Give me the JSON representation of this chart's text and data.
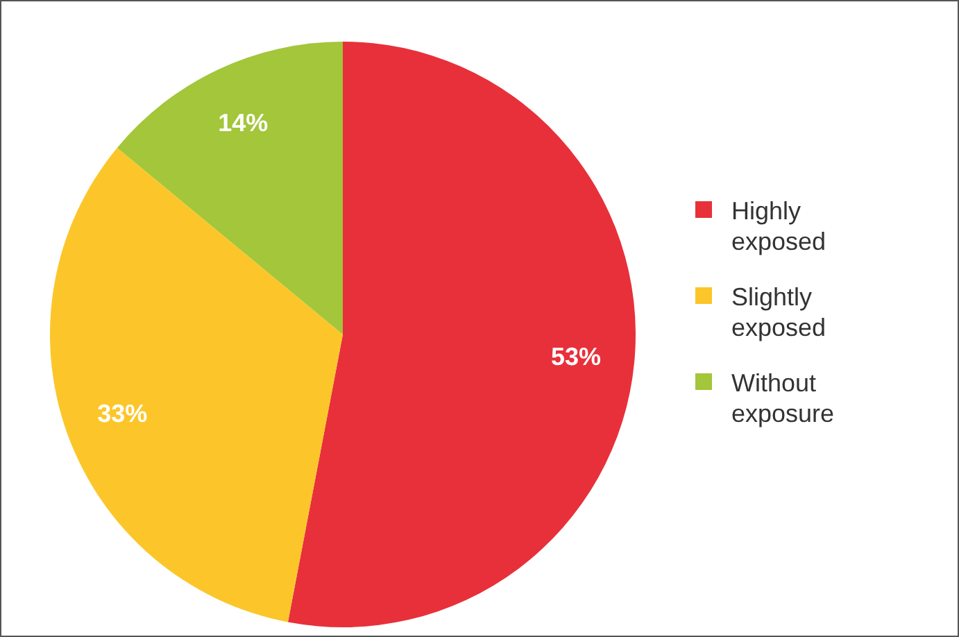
{
  "chart_data": {
    "type": "pie",
    "categories": [
      "Highly exposed",
      "Slightly exposed",
      "Without exposure"
    ],
    "values": [
      53,
      33,
      14
    ],
    "colors": [
      "#e8303a",
      "#fcc62a",
      "#a3c63a"
    ],
    "value_labels": [
      "53%",
      "33%",
      "14%"
    ],
    "legend": "right"
  }
}
